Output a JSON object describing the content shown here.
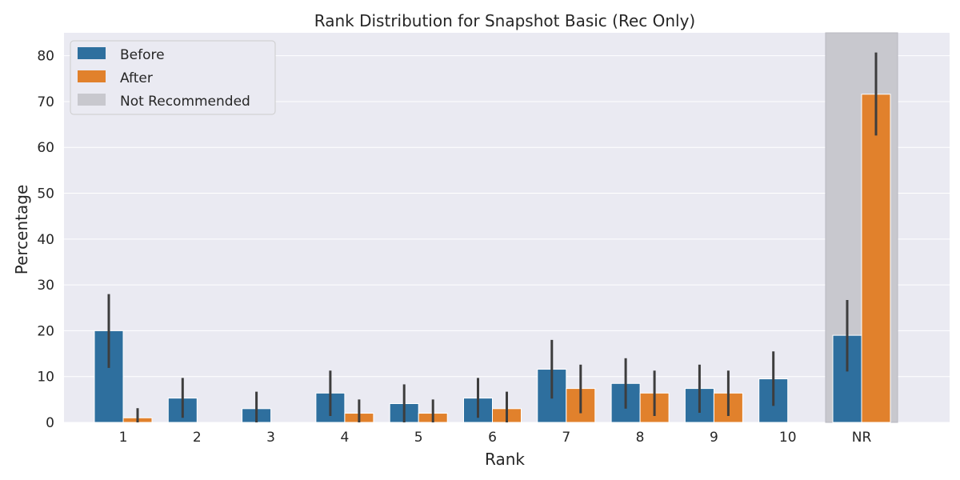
{
  "chart_data": {
    "type": "bar",
    "title": "Rank Distribution for Snapshot Basic (Rec Only)",
    "xlabel": "Rank",
    "ylabel": "Percentage",
    "categories": [
      "1",
      "2",
      "3",
      "4",
      "5",
      "6",
      "7",
      "8",
      "9",
      "10",
      "NR"
    ],
    "ylim": [
      0,
      85
    ],
    "yticks": [
      0,
      10,
      20,
      30,
      40,
      50,
      60,
      70,
      80
    ],
    "grid": true,
    "legend_position": "top-left",
    "series": [
      {
        "name": "Before",
        "color": "#2e6f9e",
        "values": [
          20.0,
          5.3,
          3.0,
          6.4,
          4.1,
          5.3,
          11.6,
          8.5,
          7.4,
          9.5,
          19.0
        ],
        "error_low": [
          11.9,
          1.0,
          0.0,
          1.4,
          0.0,
          1.0,
          5.2,
          3.0,
          2.1,
          3.6,
          11.1
        ],
        "error_high": [
          28.0,
          9.7,
          6.7,
          11.3,
          8.3,
          9.7,
          18.0,
          14.0,
          12.6,
          15.5,
          26.7
        ]
      },
      {
        "name": "After",
        "color": "#e1812c",
        "values": [
          1.0,
          0.0,
          0.0,
          2.0,
          2.0,
          3.0,
          7.4,
          6.4,
          6.4,
          0.0,
          71.6
        ],
        "error_low": [
          0.0,
          0.0,
          0.0,
          0.0,
          0.0,
          0.0,
          2.0,
          1.4,
          1.4,
          0.0,
          62.6
        ],
        "error_high": [
          3.1,
          0.0,
          0.0,
          5.0,
          5.0,
          6.7,
          12.6,
          11.3,
          11.3,
          0.0,
          80.7
        ]
      }
    ],
    "highlight": {
      "category": "NR",
      "label": "Not Recommended",
      "color": "#c8c8ce"
    }
  }
}
